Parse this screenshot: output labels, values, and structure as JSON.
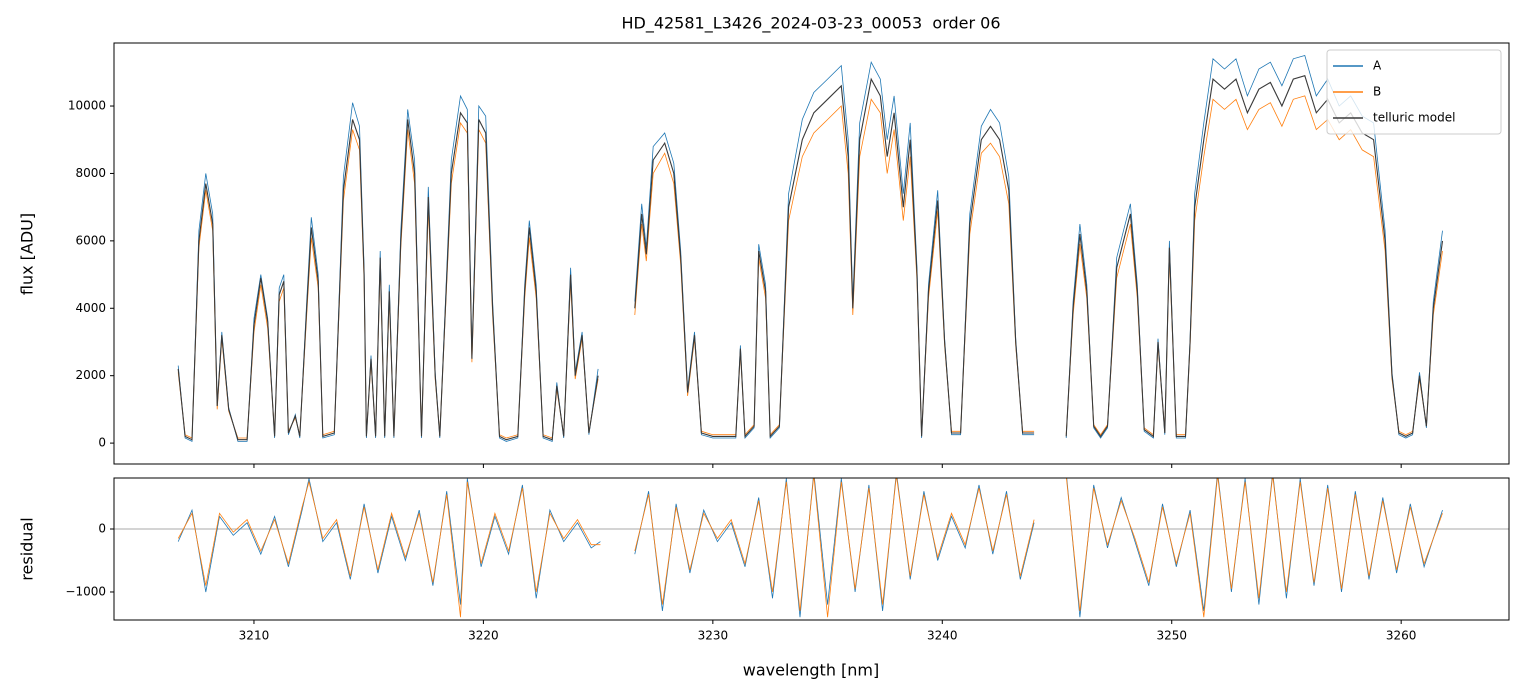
{
  "chart_data": [
    {
      "type": "line",
      "title": "HD_42581_L3426_2024-03-23_00053  order 06",
      "ylabel": "flux [ADU]",
      "xlim": [
        3203.9,
        3264.7
      ],
      "ylim": [
        -620,
        11870
      ],
      "yticks": [
        0,
        2000,
        4000,
        6000,
        8000,
        10000
      ],
      "legend": "upper right",
      "x": [
        3206.7,
        3207.0,
        3207.3,
        3207.6,
        3207.9,
        3208.2,
        3208.4,
        3208.6,
        3208.9,
        3209.3,
        3209.7,
        3210.0,
        3210.3,
        3210.6,
        3210.9,
        3211.1,
        3211.3,
        3211.5,
        3211.8,
        3212.0,
        3212.3,
        3212.5,
        3212.8,
        3213.0,
        3213.5,
        3213.9,
        3214.3,
        3214.6,
        3214.8,
        3214.9,
        3215.1,
        3215.3,
        3215.5,
        3215.7,
        3215.9,
        3216.1,
        3216.4,
        3216.7,
        3217.0,
        3217.3,
        3217.6,
        3217.9,
        3218.1,
        3218.6,
        3219.0,
        3219.3,
        3219.5,
        3219.8,
        3220.1,
        3220.4,
        3220.7,
        3221.0,
        3221.5,
        3221.8,
        3222.0,
        3222.3,
        3222.6,
        3223.0,
        3223.2,
        3223.5,
        3223.8,
        3224.0,
        3224.3,
        3224.6,
        3225.0,
        3225.8,
        3226.6,
        3226.9,
        3227.1,
        3227.4,
        3227.9,
        3228.3,
        3228.6,
        3228.9,
        3229.2,
        3229.5,
        3230.0,
        3230.5,
        3231.0,
        3231.2,
        3231.4,
        3231.8,
        3232.0,
        3232.3,
        3232.5,
        3232.9,
        3233.3,
        3233.9,
        3234.4,
        3235.0,
        3235.6,
        3235.9,
        3236.1,
        3236.4,
        3236.9,
        3237.3,
        3237.6,
        3237.9,
        3238.3,
        3238.6,
        3238.9,
        3239.1,
        3239.4,
        3239.8,
        3240.1,
        3240.4,
        3240.8,
        3241.2,
        3241.7,
        3242.1,
        3242.5,
        3242.9,
        3243.2,
        3243.5,
        3244.0,
        3244.7,
        3245.4,
        3245.7,
        3246.0,
        3246.3,
        3246.6,
        3246.9,
        3247.2,
        3247.6,
        3247.9,
        3248.2,
        3248.5,
        3248.8,
        3249.2,
        3249.4,
        3249.7,
        3249.9,
        3250.2,
        3250.6,
        3250.8,
        3251.0,
        3251.4,
        3251.8,
        3252.3,
        3252.8,
        3253.3,
        3253.8,
        3254.3,
        3254.8,
        3255.3,
        3255.8,
        3256.3,
        3256.8,
        3257.3,
        3257.8,
        3258.3,
        3258.8,
        3259.3,
        3259.6,
        3259.9,
        3260.2,
        3260.5,
        3260.8,
        3261.1,
        3261.4,
        3261.8
      ],
      "series": [
        {
          "name": "A",
          "color": "#1f77b4",
          "values": [
            2300,
            150,
            50,
            6300,
            8000,
            6800,
            1100,
            3300,
            1050,
            50,
            50,
            3700,
            5000,
            3700,
            150,
            4600,
            5000,
            250,
            850,
            150,
            4200,
            6700,
            5000,
            150,
            250,
            7900,
            10100,
            9400,
            5200,
            150,
            2600,
            150,
            5700,
            150,
            4700,
            150,
            6300,
            9900,
            8400,
            150,
            7600,
            2100,
            150,
            8400,
            10300,
            9900,
            2600,
            10000,
            9700,
            4200,
            150,
            50,
            150,
            4700,
            6600,
            4700,
            150,
            50,
            1800,
            150,
            5200,
            2100,
            3300,
            250,
            2200,
            null,
            4200,
            7100,
            5800,
            8800,
            9200,
            8300,
            5700,
            1600,
            3300,
            250,
            150,
            150,
            150,
            2900,
            150,
            450,
            5900,
            4700,
            150,
            450,
            7400,
            9600,
            10400,
            10800,
            11200,
            9000,
            4200,
            9500,
            11300,
            10800,
            9000,
            10300,
            7400,
            9500,
            5200,
            150,
            4700,
            7500,
            3100,
            250,
            250,
            6800,
            9400,
            9900,
            9500,
            7900,
            3100,
            250,
            250,
            null,
            150,
            4200,
            6500,
            4700,
            450,
            150,
            450,
            5500,
            6300,
            7100,
            4700,
            350,
            150,
            3100,
            250,
            6000,
            150,
            150,
            3100,
            7400,
            9500,
            11400,
            11100,
            11400,
            10300,
            11100,
            11300,
            10600,
            11400,
            11500,
            10300,
            10800,
            10000,
            10300,
            9700,
            9500,
            6300,
            2100,
            250,
            150,
            250,
            2100,
            450,
            4200,
            6300
          ]
        },
        {
          "name": "B",
          "color": "#ff7f0e",
          "values": [
            2100,
            250,
            150,
            5800,
            7500,
            6300,
            1000,
            3100,
            950,
            150,
            150,
            3300,
            4700,
            3400,
            250,
            4200,
            4600,
            350,
            750,
            250,
            3800,
            6100,
            4600,
            250,
            350,
            7200,
            9300,
            8700,
            4800,
            250,
            2400,
            250,
            5300,
            250,
            4300,
            250,
            5800,
            9300,
            7700,
            250,
            7000,
            1900,
            250,
            7700,
            9500,
            9200,
            2400,
            9300,
            8900,
            3800,
            250,
            150,
            250,
            4300,
            6100,
            4300,
            250,
            150,
            1600,
            250,
            4800,
            1900,
            3100,
            350,
            1900,
            null,
            3800,
            6500,
            5400,
            8000,
            8600,
            7700,
            5300,
            1400,
            3100,
            350,
            250,
            250,
            250,
            2700,
            250,
            550,
            5500,
            4300,
            250,
            550,
            6600,
            8500,
            9200,
            9600,
            10000,
            8000,
            3800,
            8500,
            10200,
            9800,
            8000,
            9300,
            6600,
            8500,
            4800,
            250,
            4300,
            6900,
            2900,
            350,
            350,
            6200,
            8600,
            8900,
            8500,
            7100,
            2900,
            350,
            350,
            null,
            250,
            3800,
            5900,
            4300,
            550,
            250,
            550,
            4900,
            5700,
            6500,
            4300,
            450,
            250,
            2900,
            350,
            5600,
            250,
            250,
            2900,
            6600,
            8500,
            10200,
            9900,
            10200,
            9300,
            9900,
            10100,
            9400,
            10200,
            10300,
            9300,
            9600,
            9000,
            9300,
            8700,
            8500,
            5700,
            1900,
            350,
            250,
            350,
            1900,
            550,
            3800,
            5700
          ]
        },
        {
          "name": "telluric model",
          "color": "#3a3a3a",
          "values": [
            2200,
            200,
            100,
            6000,
            7700,
            6500,
            1100,
            3200,
            1000,
            100,
            100,
            3500,
            4900,
            3600,
            200,
            4400,
            4800,
            300,
            800,
            200,
            4000,
            6400,
            4800,
            200,
            300,
            7500,
            9600,
            9000,
            5000,
            200,
            2500,
            200,
            5500,
            200,
            4500,
            200,
            6000,
            9600,
            8000,
            200,
            7300,
            2000,
            200,
            8000,
            9800,
            9500,
            2500,
            9600,
            9200,
            4000,
            200,
            100,
            200,
            4500,
            6400,
            4500,
            200,
            100,
            1700,
            200,
            5000,
            2000,
            3200,
            300,
            2000,
            null,
            4000,
            6800,
            5600,
            8400,
            8900,
            8000,
            5500,
            1500,
            3200,
            300,
            200,
            200,
            200,
            2800,
            200,
            500,
            5700,
            4500,
            200,
            500,
            7000,
            9000,
            9800,
            10200,
            10600,
            8500,
            4000,
            9000,
            10800,
            10300,
            8500,
            9800,
            7000,
            9000,
            5000,
            200,
            4500,
            7200,
            3000,
            300,
            300,
            6500,
            9000,
            9400,
            9000,
            7500,
            3000,
            300,
            300,
            null,
            200,
            4000,
            6200,
            4500,
            500,
            200,
            500,
            5200,
            6000,
            6800,
            4500,
            400,
            200,
            3000,
            300,
            5800,
            200,
            200,
            3000,
            7000,
            9000,
            10800,
            10500,
            10800,
            9800,
            10500,
            10700,
            10000,
            10800,
            10900,
            9800,
            10200,
            9500,
            9800,
            9200,
            9000,
            6000,
            2000,
            300,
            200,
            300,
            2000,
            500,
            4000,
            6000
          ]
        }
      ]
    },
    {
      "type": "line",
      "ylabel": "residual",
      "xlabel": "wavelength [nm]",
      "xlim": [
        3203.9,
        3264.7
      ],
      "xticks": [
        3210,
        3220,
        3230,
        3240,
        3250,
        3260
      ],
      "ylim": [
        -1445,
        810
      ],
      "yticks": [
        {
          "value": -1000,
          "label": "−1000"
        },
        0
      ],
      "x": [
        3206.7,
        3207.3,
        3207.9,
        3208.5,
        3209.1,
        3209.7,
        3210.3,
        3210.9,
        3211.5,
        3212.1,
        3212.4,
        3213.0,
        3213.6,
        3214.2,
        3214.8,
        3215.4,
        3216.0,
        3216.6,
        3217.2,
        3217.8,
        3218.4,
        3219.0,
        3219.3,
        3219.9,
        3220.5,
        3221.1,
        3221.7,
        3222.3,
        3222.9,
        3223.5,
        3224.1,
        3224.7,
        3225.1,
        3225.8,
        3226.6,
        3227.2,
        3227.8,
        3228.4,
        3229.0,
        3229.6,
        3230.2,
        3230.8,
        3231.4,
        3232.0,
        3232.6,
        3233.2,
        3233.8,
        3234.4,
        3235.0,
        3235.6,
        3236.2,
        3236.8,
        3237.4,
        3238.0,
        3238.6,
        3239.2,
        3239.8,
        3240.4,
        3241.0,
        3241.6,
        3242.2,
        3242.8,
        3243.4,
        3244.0,
        3244.7,
        3245.4,
        3246.0,
        3246.6,
        3247.2,
        3247.8,
        3248.4,
        3249.0,
        3249.6,
        3250.2,
        3250.8,
        3251.4,
        3252.0,
        3252.6,
        3253.2,
        3253.8,
        3254.4,
        3255.0,
        3255.6,
        3256.2,
        3256.8,
        3257.4,
        3258.0,
        3258.6,
        3259.2,
        3259.8,
        3260.4,
        3261.0,
        3261.8
      ],
      "series": [
        {
          "name": "A",
          "color": "#1f77b4",
          "values": [
            -200,
            300,
            -1000,
            200,
            -100,
            100,
            -400,
            200,
            -600,
            300,
            800,
            -200,
            100,
            -800,
            400,
            -700,
            200,
            -500,
            300,
            -900,
            600,
            -1200,
            800,
            -600,
            200,
            -400,
            700,
            -1100,
            300,
            -200,
            100,
            -300,
            -200,
            null,
            -400,
            600,
            -1300,
            400,
            -700,
            300,
            -200,
            100,
            -600,
            500,
            -1100,
            800,
            -1400,
            900,
            -1200,
            800,
            -1000,
            700,
            -1300,
            900,
            -800,
            600,
            -500,
            200,
            -300,
            700,
            -400,
            600,
            -800,
            100,
            null,
            900,
            -1400,
            700,
            -300,
            500,
            -200,
            -900,
            400,
            -600,
            300,
            -1300,
            900,
            -1000,
            800,
            -1200,
            900,
            -1100,
            800,
            -900,
            700,
            -1000,
            600,
            -800,
            500,
            -700,
            400,
            -600,
            300
          ]
        },
        {
          "name": "B",
          "color": "#ff7f0e",
          "values": [
            -150,
            250,
            -900,
            250,
            -50,
            150,
            -350,
            150,
            -550,
            350,
            750,
            -150,
            150,
            -750,
            350,
            -650,
            250,
            -450,
            250,
            -850,
            550,
            -1400,
            750,
            -550,
            250,
            -350,
            650,
            -1000,
            250,
            -150,
            150,
            -250,
            -250,
            null,
            -350,
            550,
            -1200,
            350,
            -650,
            250,
            -150,
            150,
            -550,
            450,
            -1000,
            750,
            -1300,
            850,
            -1400,
            750,
            -950,
            650,
            -1200,
            850,
            -750,
            550,
            -450,
            250,
            -250,
            650,
            -350,
            550,
            -750,
            150,
            null,
            850,
            -1300,
            650,
            -250,
            450,
            -150,
            -850,
            350,
            -550,
            250,
            -1400,
            850,
            -950,
            750,
            -1100,
            850,
            -1000,
            750,
            -850,
            650,
            -950,
            550,
            -750,
            450,
            -650,
            350,
            -550,
            250
          ]
        }
      ]
    }
  ]
}
